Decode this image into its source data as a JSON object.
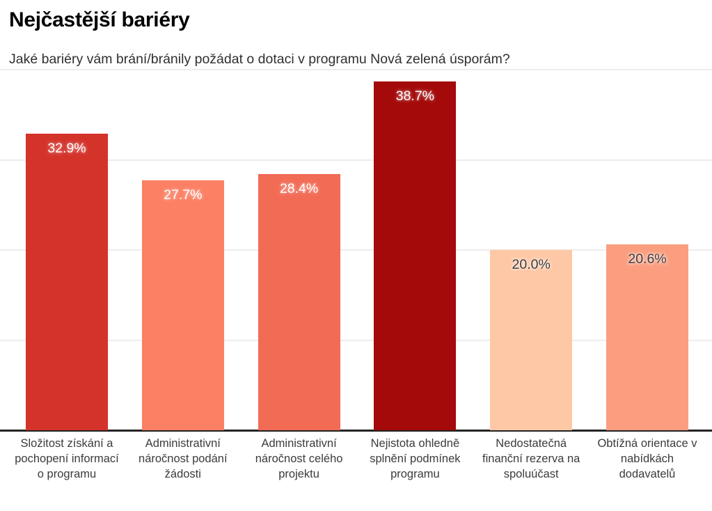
{
  "chart_data": {
    "type": "bar",
    "title": "Nejčastější bariéry",
    "subtitle": "Jaké bariéry vám brání/bránily požádat o dotaci v programu Nová zelená úsporám?",
    "categories": [
      "Složitost získání a pochopení informací o programu",
      "Administrativní náročnost podání žádosti",
      "Administrativní náročnost celého projektu",
      "Nejistota ohledně splnění podmínek programu",
      "Nedostatečná finanční rezerva na spoluúčast",
      "Obtížná orientace v nabídkách dodavatelů"
    ],
    "values": [
      32.9,
      27.7,
      28.4,
      38.7,
      20.0,
      20.6
    ],
    "value_labels": [
      "32.9%",
      "27.7%",
      "28.4%",
      "38.7%",
      "20.0%",
      "20.6%"
    ],
    "bar_colors": [
      "#d4332a",
      "#fc8064",
      "#f26b55",
      "#a40a0a",
      "#fec8a6",
      "#fb9e80"
    ],
    "value_label_styles": [
      "light-text",
      "light-text",
      "light-text",
      "light-text",
      "dark-text",
      "dark-text"
    ],
    "ylim": [
      0,
      40
    ],
    "gridline_values": [
      10,
      20,
      30,
      40
    ],
    "grid": true,
    "legend": "none",
    "xlabel": "",
    "ylabel": "",
    "colors": {
      "gridline": "#ededed",
      "axis_line": "#222222",
      "title": "#000000",
      "subtitle": "#2f2f2f",
      "category_label": "#3b3b3b"
    }
  }
}
